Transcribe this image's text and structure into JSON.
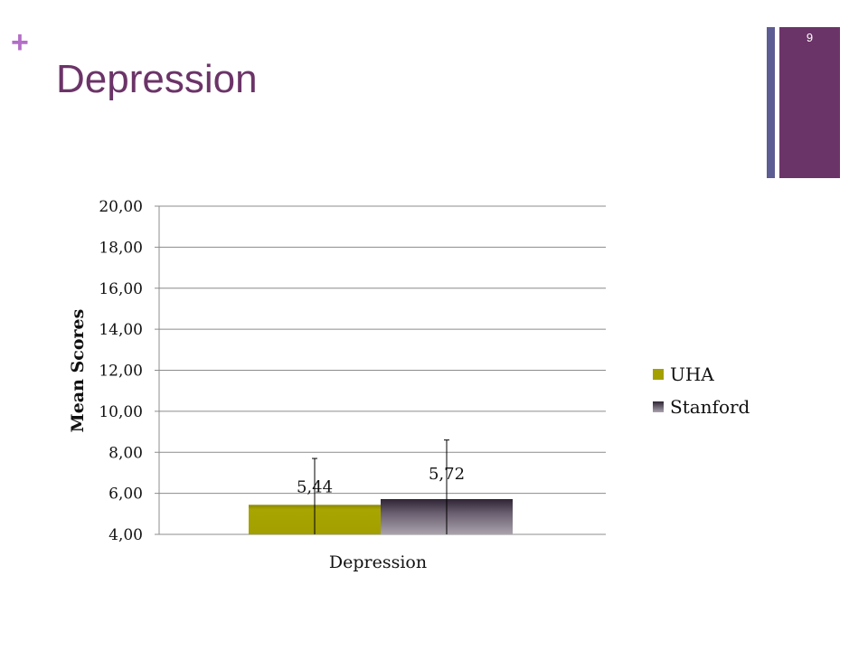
{
  "slide": {
    "title": "Depression",
    "page_number": "9",
    "colors": {
      "accent_purple": "#6b3468",
      "accent_blue": "#5d5c93",
      "plus": "#b46ec8"
    },
    "icons": {
      "plus_marker": "plus-icon"
    }
  },
  "chart_data": {
    "type": "bar",
    "title": "",
    "xlabel": "Depression",
    "ylabel": "Mean Scores",
    "categories": [
      "Depression"
    ],
    "ylim": [
      4,
      20
    ],
    "yticks": [
      20,
      18,
      16,
      14,
      12,
      10,
      8,
      6,
      4
    ],
    "ytick_labels": [
      "20,00",
      "18,00",
      "16,00",
      "14,00",
      "12,00",
      "10,00",
      "8,00",
      "6,00",
      "4,00"
    ],
    "grid": true,
    "legend_position": "right",
    "series": [
      {
        "name": "UHA",
        "values": [
          5.44
        ],
        "value_labels": [
          "5,44"
        ],
        "error_upper": [
          7.7
        ],
        "color": "#a3a000"
      },
      {
        "name": "Stanford",
        "values": [
          5.72
        ],
        "value_labels": [
          "5,72"
        ],
        "error_upper": [
          8.6
        ],
        "color": "#4a3f52"
      }
    ]
  }
}
